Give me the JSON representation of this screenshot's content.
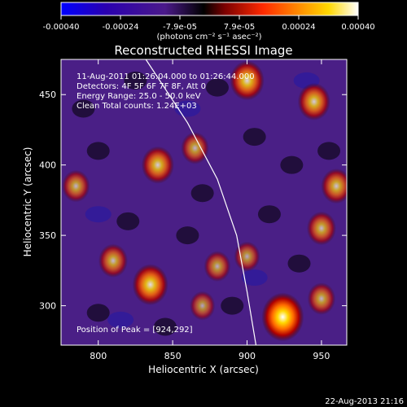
{
  "chart_data": {
    "type": "heatmap",
    "title": "Reconstructed RHESSI Image",
    "xlabel": "Heliocentric X (arcsec)",
    "ylabel": "Heliocentric Y (arcsec)",
    "xlim": [
      775,
      967
    ],
    "ylim": [
      272,
      475
    ],
    "xticks": [
      800,
      850,
      900,
      950
    ],
    "yticks": [
      300,
      350,
      400,
      450
    ],
    "colorbar": {
      "label": "(photons cm⁻² s⁻¹ asec⁻²)",
      "range": [
        -0.0004,
        0.0004
      ],
      "tick_labels": [
        "-0.00040",
        "-0.00024",
        "-7.9e-05",
        "7.9e-05",
        "0.00024",
        "0.00040"
      ],
      "colormap": [
        "#0000ff",
        "#2a00b0",
        "#4b1a8a",
        "#000000",
        "#7a0000",
        "#ff2a00",
        "#ff8c00",
        "#ffd700",
        "#ffffff"
      ]
    },
    "annotations": [
      "11-Aug-2011 01:26:04.000 to 01:26:44.000",
      "Detectors: 4F 5F 6F 7F 8F, Att 0",
      "Energy Range: 25.0 - 50.0 keV",
      "Clean    Total counts: 1.24E+03"
    ],
    "peak_label": "Position of Peak = [924,292]",
    "peak": [
      924,
      292
    ],
    "limb_curve": [
      [
        832,
        475
      ],
      [
        860,
        430
      ],
      [
        880,
        390
      ],
      [
        893,
        350
      ],
      [
        900,
        310
      ],
      [
        906,
        272
      ]
    ],
    "sources": [
      {
        "x": 924,
        "y": 292,
        "value": 0.0004
      },
      {
        "x": 835,
        "y": 315,
        "value": 0.0003
      },
      {
        "x": 840,
        "y": 400,
        "value": 0.00025
      },
      {
        "x": 785,
        "y": 385,
        "value": 0.00018
      },
      {
        "x": 810,
        "y": 332,
        "value": 0.0002
      },
      {
        "x": 960,
        "y": 385,
        "value": 0.00022
      },
      {
        "x": 950,
        "y": 355,
        "value": 0.0002
      },
      {
        "x": 865,
        "y": 412,
        "value": 0.00018
      },
      {
        "x": 900,
        "y": 460,
        "value": 0.00028
      },
      {
        "x": 945,
        "y": 445,
        "value": 0.00025
      },
      {
        "x": 950,
        "y": 305,
        "value": 0.00018
      },
      {
        "x": 880,
        "y": 328,
        "value": 0.00016
      },
      {
        "x": 900,
        "y": 335,
        "value": 0.00015
      },
      {
        "x": 870,
        "y": 300,
        "value": 0.00014
      }
    ]
  },
  "footer": {
    "date": "22-Aug-2013 21:16"
  }
}
